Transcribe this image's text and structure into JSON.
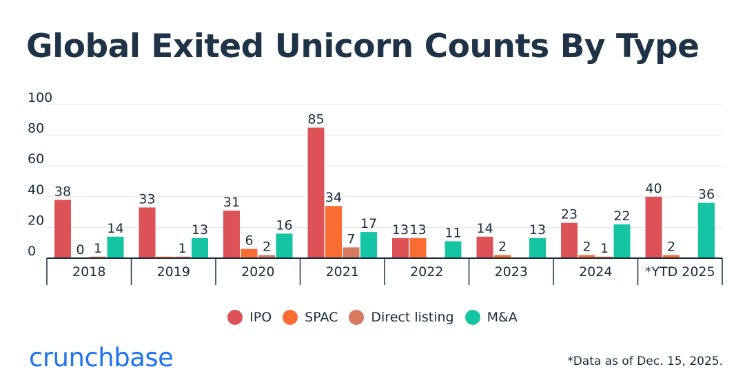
{
  "title": "Global Exited Unicorn Counts By Type",
  "footnote": "*Data as of Dec. 15, 2025.",
  "logo_text": "crunchbase",
  "colors": {
    "ipo": "#dd5256",
    "spac": "#fb6c33",
    "direct_listing": "#d77861",
    "ma": "#15c4a3",
    "grid": "#e6e6e6",
    "axis": "#1b2a3a",
    "logo": "#1e73f0"
  },
  "chart_data": {
    "type": "bar",
    "title": "Global Exited Unicorn Counts By Type",
    "xlabel": "",
    "ylabel": "",
    "ylim": [
      0,
      100
    ],
    "yticks": [
      0,
      20,
      40,
      60,
      80,
      100
    ],
    "grid": true,
    "legend_position": "bottom-center",
    "categories": [
      "2018",
      "2019",
      "2020",
      "2021",
      "2022",
      "2023",
      "2024",
      "*YTD 2025"
    ],
    "series": [
      {
        "name": "IPO",
        "key": "ipo",
        "values": [
          38,
          33,
          31,
          85,
          13,
          14,
          23,
          40
        ],
        "labels": [
          "38",
          "33",
          "31",
          "85",
          "13",
          "14",
          "23",
          "40"
        ]
      },
      {
        "name": "SPAC",
        "key": "spac",
        "values": [
          0,
          1,
          6,
          34,
          13,
          2,
          2,
          2
        ],
        "labels": [
          "0",
          "",
          "6",
          "34",
          "13",
          "2",
          "2",
          "2"
        ]
      },
      {
        "name": "Direct listing",
        "key": "direct_listing",
        "values": [
          1,
          1,
          2,
          7,
          0,
          0,
          1,
          0
        ],
        "labels": [
          "1",
          "1",
          "2",
          "7",
          "",
          "",
          "1",
          ""
        ]
      },
      {
        "name": "M&A",
        "key": "ma",
        "values": [
          14,
          13,
          16,
          17,
          11,
          13,
          22,
          36
        ],
        "labels": [
          "14",
          "13",
          "16",
          "17",
          "11",
          "13",
          "22",
          "36"
        ]
      }
    ]
  }
}
